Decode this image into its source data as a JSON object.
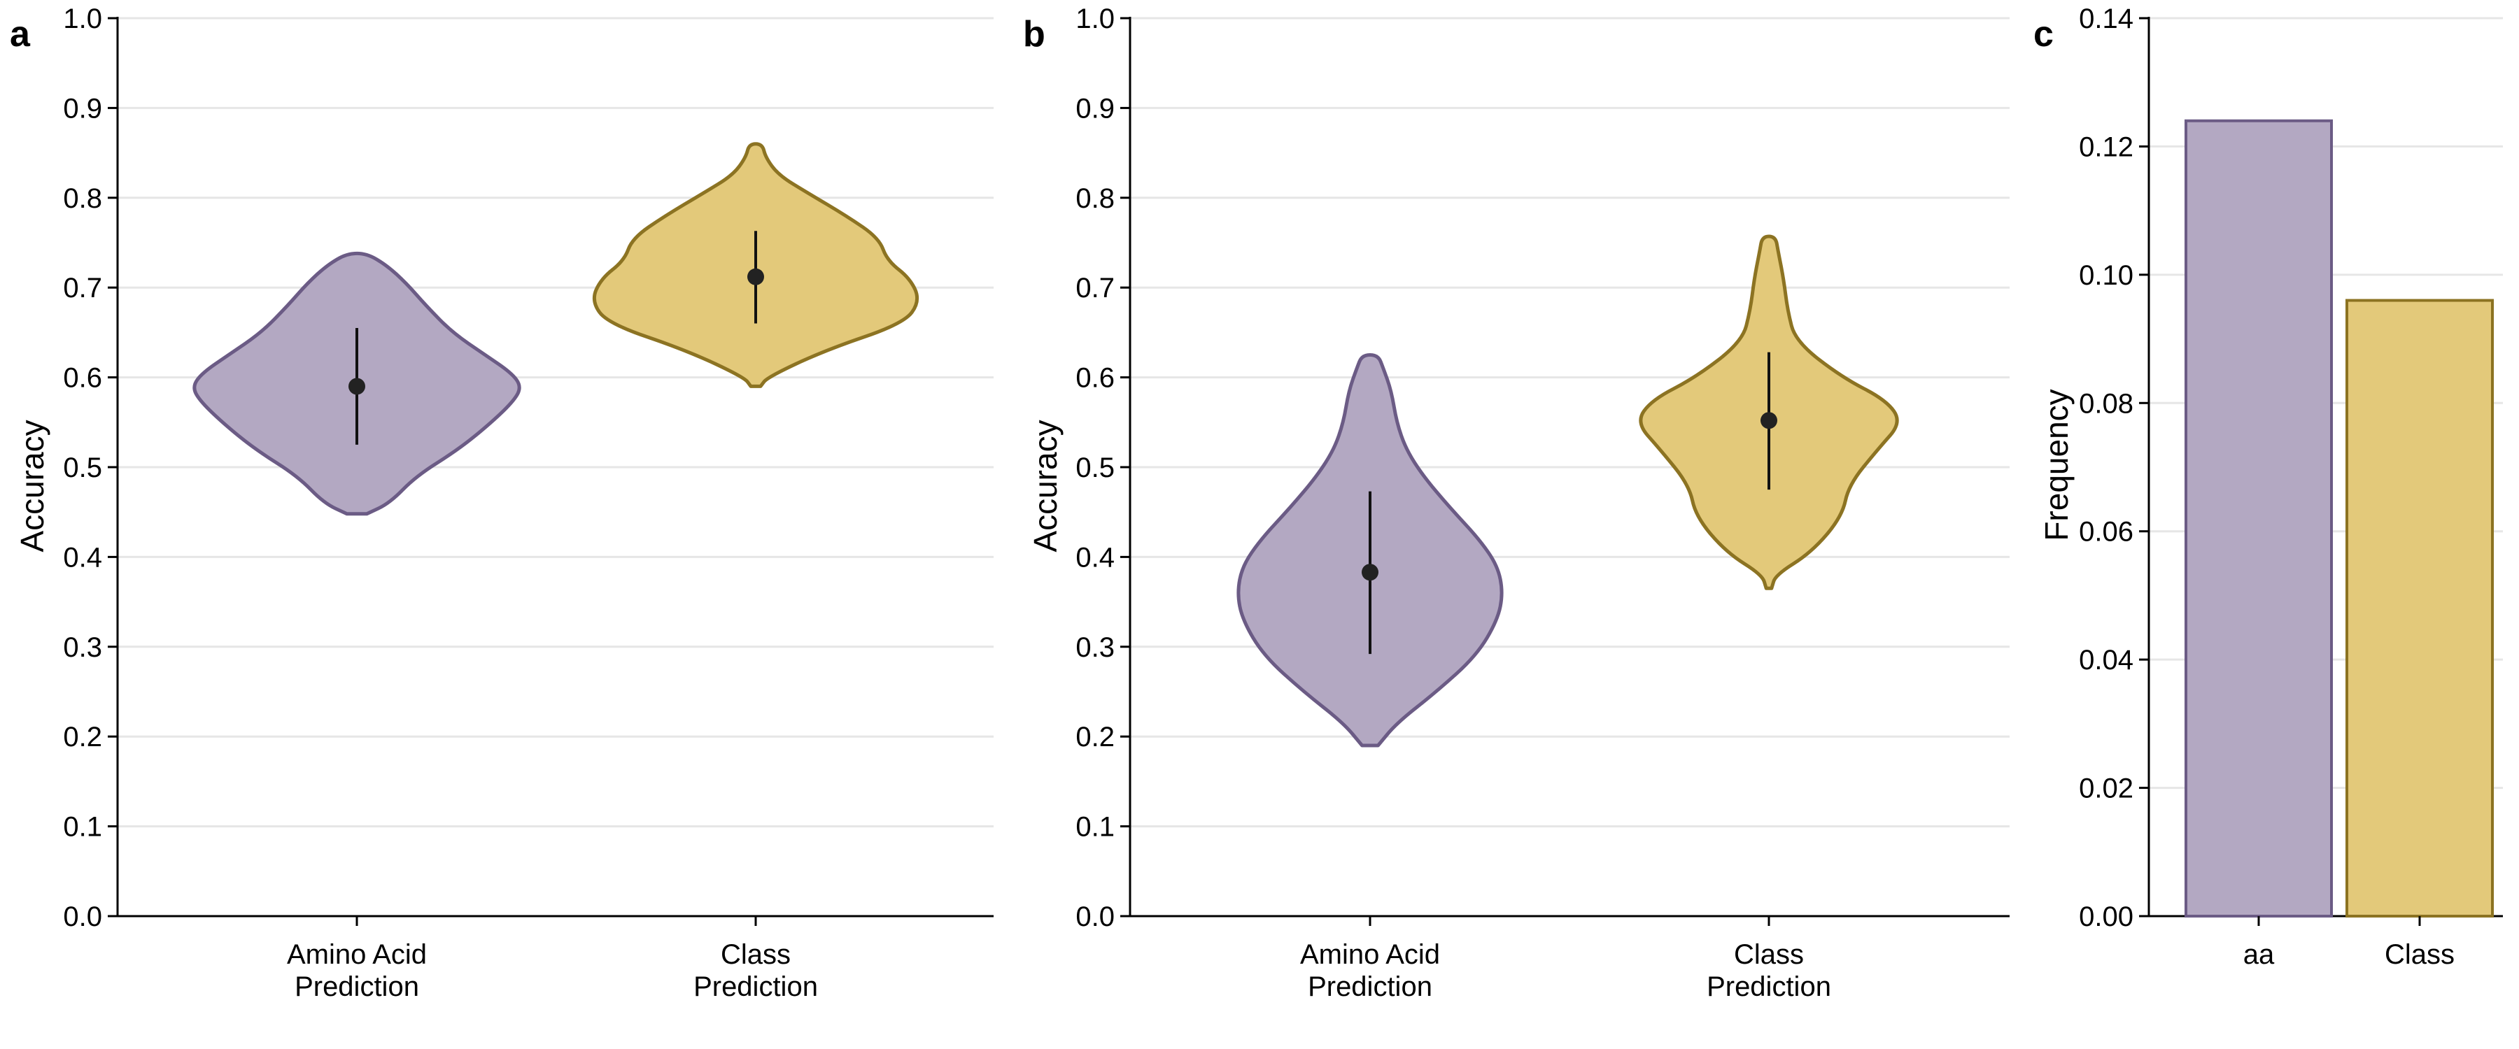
{
  "colors": {
    "purple_fill": "#b3a8c2",
    "purple_edge": "#6b5b85",
    "gold_fill": "#e3c97a",
    "gold_edge": "#8c7322",
    "grid": "#e6e6e6"
  },
  "chart_data": [
    {
      "panel": "a",
      "type": "violin",
      "ylabel": "Accuracy",
      "xlabel": "",
      "ylim": [
        0.0,
        1.0
      ],
      "yticks": [
        "0.0",
        "0.1",
        "0.2",
        "0.3",
        "0.4",
        "0.5",
        "0.6",
        "0.7",
        "0.8",
        "0.9",
        "1.0"
      ],
      "grid": true,
      "categories": [
        {
          "name": "Amino Acid Prediction",
          "label_lines": [
            "Amino Acid",
            "Prediction"
          ],
          "color": "purple",
          "mean": 0.59,
          "err_low": 0.525,
          "err_high": 0.655,
          "min": 0.448,
          "max": 0.738,
          "profile": [
            [
              0.448,
              0.06
            ],
            [
              0.46,
              0.2
            ],
            [
              0.49,
              0.36
            ],
            [
              0.52,
              0.62
            ],
            [
              0.55,
              0.82
            ],
            [
              0.575,
              0.96
            ],
            [
              0.59,
              1.0
            ],
            [
              0.605,
              0.94
            ],
            [
              0.625,
              0.78
            ],
            [
              0.65,
              0.58
            ],
            [
              0.68,
              0.42
            ],
            [
              0.705,
              0.3
            ],
            [
              0.725,
              0.18
            ],
            [
              0.738,
              0.06
            ]
          ]
        },
        {
          "name": "Class Prediction",
          "label_lines": [
            "Class",
            "Prediction"
          ],
          "color": "gold",
          "mean": 0.712,
          "err_low": 0.66,
          "err_high": 0.763,
          "min": 0.59,
          "max": 0.86,
          "profile": [
            [
              0.59,
              0.03
            ],
            [
              0.6,
              0.07
            ],
            [
              0.63,
              0.42
            ],
            [
              0.66,
              0.9
            ],
            [
              0.685,
              1.0
            ],
            [
              0.71,
              0.94
            ],
            [
              0.73,
              0.8
            ],
            [
              0.755,
              0.75
            ],
            [
              0.78,
              0.55
            ],
            [
              0.805,
              0.32
            ],
            [
              0.825,
              0.14
            ],
            [
              0.845,
              0.06
            ],
            [
              0.86,
              0.04
            ]
          ]
        }
      ]
    },
    {
      "panel": "b",
      "type": "violin",
      "ylabel": "Accuracy",
      "xlabel": "",
      "ylim": [
        0.0,
        1.0
      ],
      "yticks": [
        "0.0",
        "0.1",
        "0.2",
        "0.3",
        "0.4",
        "0.5",
        "0.6",
        "0.7",
        "0.8",
        "0.9",
        "1.0"
      ],
      "grid": true,
      "categories": [
        {
          "name": "Amino Acid Prediction",
          "label_lines": [
            "Amino Acid",
            "Prediction"
          ],
          "color": "purple",
          "mean": 0.383,
          "err_low": 0.292,
          "err_high": 0.473,
          "min": 0.19,
          "max": 0.625,
          "profile": [
            [
              0.19,
              0.06
            ],
            [
              0.215,
              0.2
            ],
            [
              0.25,
              0.5
            ],
            [
              0.29,
              0.8
            ],
            [
              0.33,
              0.96
            ],
            [
              0.36,
              1.0
            ],
            [
              0.39,
              0.96
            ],
            [
              0.42,
              0.82
            ],
            [
              0.455,
              0.6
            ],
            [
              0.49,
              0.4
            ],
            [
              0.52,
              0.27
            ],
            [
              0.55,
              0.2
            ],
            [
              0.585,
              0.16
            ],
            [
              0.61,
              0.1
            ],
            [
              0.625,
              0.06
            ]
          ]
        },
        {
          "name": "Class Prediction",
          "label_lines": [
            "Class",
            "Prediction"
          ],
          "color": "gold",
          "mean": 0.552,
          "err_low": 0.475,
          "err_high": 0.628,
          "min": 0.365,
          "max": 0.757,
          "profile": [
            [
              0.365,
              0.02
            ],
            [
              0.38,
              0.05
            ],
            [
              0.405,
              0.32
            ],
            [
              0.445,
              0.55
            ],
            [
              0.48,
              0.6
            ],
            [
              0.52,
              0.82
            ],
            [
              0.55,
              1.0
            ],
            [
              0.575,
              0.88
            ],
            [
              0.6,
              0.55
            ],
            [
              0.64,
              0.2
            ],
            [
              0.675,
              0.14
            ],
            [
              0.71,
              0.11
            ],
            [
              0.74,
              0.07
            ],
            [
              0.757,
              0.05
            ]
          ]
        }
      ]
    },
    {
      "panel": "c",
      "type": "bar",
      "ylabel": "Frequency",
      "xlabel": "",
      "ylim": [
        0.0,
        0.14
      ],
      "yticks": [
        "0.00",
        "0.02",
        "0.04",
        "0.06",
        "0.08",
        "0.10",
        "0.12",
        "0.14"
      ],
      "grid": true,
      "categories": [
        "aa",
        "Class"
      ],
      "values": [
        0.124,
        0.096
      ],
      "bar_colors": [
        "purple",
        "gold"
      ]
    }
  ]
}
